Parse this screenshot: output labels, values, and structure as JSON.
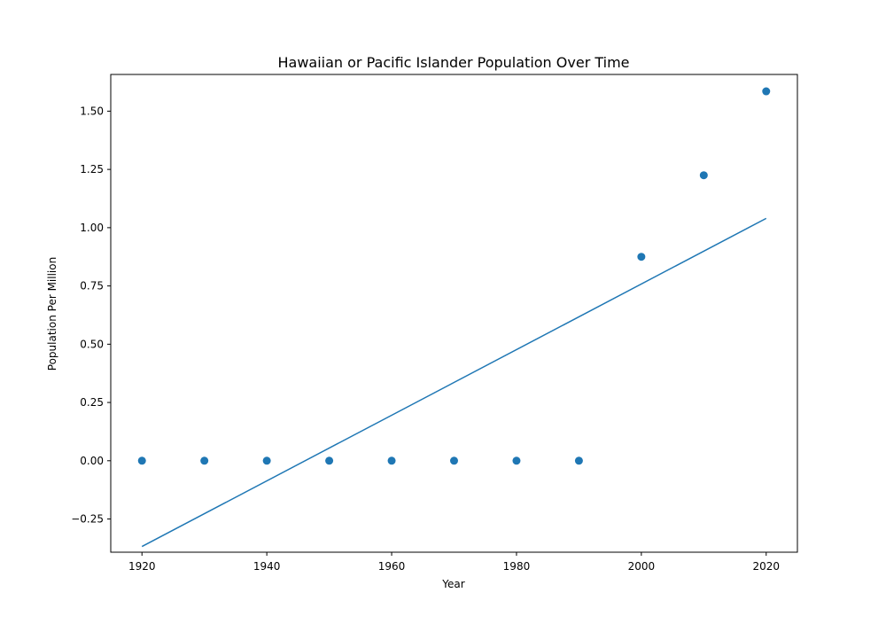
{
  "chart_data": {
    "type": "scatter",
    "title": "Hawaiian or Pacific Islander Population Over Time",
    "xlabel": "Year",
    "ylabel": "Population Per Million",
    "xlim": [
      1915,
      2025
    ],
    "ylim": [
      -0.3925,
      1.6575
    ],
    "grid": false,
    "x_ticks": [
      1920,
      1940,
      1960,
      1980,
      2000,
      2020
    ],
    "x_tick_labels": [
      "1920",
      "1940",
      "1960",
      "1980",
      "2000",
      "2020"
    ],
    "y_ticks": [
      -0.25,
      0,
      0.25,
      0.5,
      0.75,
      1.0,
      1.25,
      1.5
    ],
    "y_tick_labels": [
      "−0.25",
      "0.00",
      "0.25",
      "0.50",
      "0.75",
      "1.00",
      "1.25",
      "1.50"
    ],
    "series": [
      {
        "kind": "scatter",
        "color": "#1f77b4",
        "points": [
          {
            "x": 1920,
            "y": 0
          },
          {
            "x": 1930,
            "y": 0
          },
          {
            "x": 1940,
            "y": 0
          },
          {
            "x": 1950,
            "y": 0
          },
          {
            "x": 1960,
            "y": 0
          },
          {
            "x": 1970,
            "y": 0
          },
          {
            "x": 1980,
            "y": 0
          },
          {
            "x": 1990,
            "y": 0
          },
          {
            "x": 2000,
            "y": 0.875
          },
          {
            "x": 2010,
            "y": 1.225
          },
          {
            "x": 2020,
            "y": 1.585
          }
        ]
      },
      {
        "kind": "line",
        "color": "#1f77b4",
        "points": [
          {
            "x": 1920,
            "y": -0.368
          },
          {
            "x": 2020,
            "y": 1.04
          }
        ]
      }
    ]
  }
}
